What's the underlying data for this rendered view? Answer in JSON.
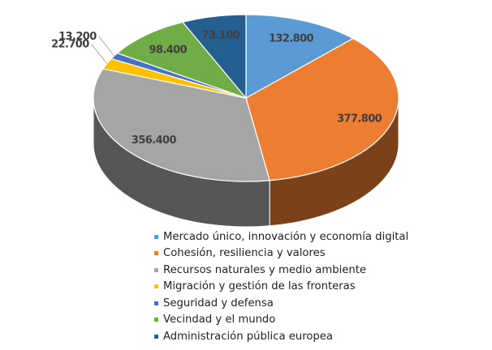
{
  "chart_data": {
    "type": "pie",
    "categories": [
      "Mercado único, innovación y economía digital",
      "Cohesión, resiliencia y valores",
      "Recursos naturales y medio ambiente",
      "Migración y gestión de las fronteras",
      "Seguridad y defensa",
      "Vecindad y el mundo",
      "Administración pública europea"
    ],
    "values": [
      132800,
      377800,
      356400,
      22700,
      13200,
      98400,
      73100
    ],
    "data_labels": [
      "132.800",
      "377.800",
      "356.400",
      "22.700",
      "13.200",
      "98.400",
      "73.100"
    ],
    "colors": [
      "#5B9BD5",
      "#ED7D31",
      "#A5A5A5",
      "#FFC000",
      "#4472C4",
      "#70AD47",
      "#255E91"
    ],
    "legend_position": "bottom",
    "style": "3d-pie"
  }
}
